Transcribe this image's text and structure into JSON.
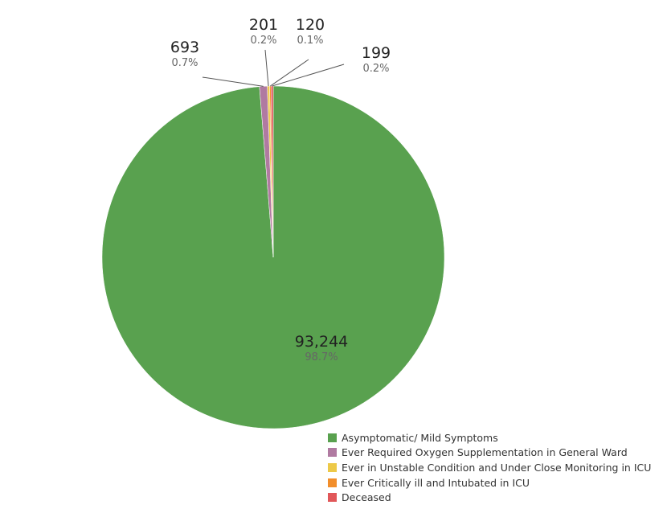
{
  "chart_data": {
    "type": "pie",
    "title": "",
    "legend_position": "bottom-right",
    "slices": [
      {
        "name": "Asymptomatic/ Mild Symptoms",
        "value": 93244,
        "value_label": "93,244",
        "percent_label": "98.7%",
        "color": "#59a14f"
      },
      {
        "name": "Ever Required Oxygen Supplementation in General Ward",
        "value": 693,
        "value_label": "693",
        "percent_label": "0.7%",
        "color": "#b07aa1"
      },
      {
        "name": "Ever in Unstable Condition and Under Close Monitoring in ICU",
        "value": 201,
        "value_label": "201",
        "percent_label": "0.2%",
        "color": "#edc948"
      },
      {
        "name": "Ever Critically ill and Intubated in ICU",
        "value": 120,
        "value_label": "120",
        "percent_label": "0.1%",
        "color": "#f28e2b"
      },
      {
        "name": "Deceased",
        "value": 199,
        "value_label": "199",
        "percent_label": "0.2%",
        "color": "#e15759"
      }
    ]
  }
}
